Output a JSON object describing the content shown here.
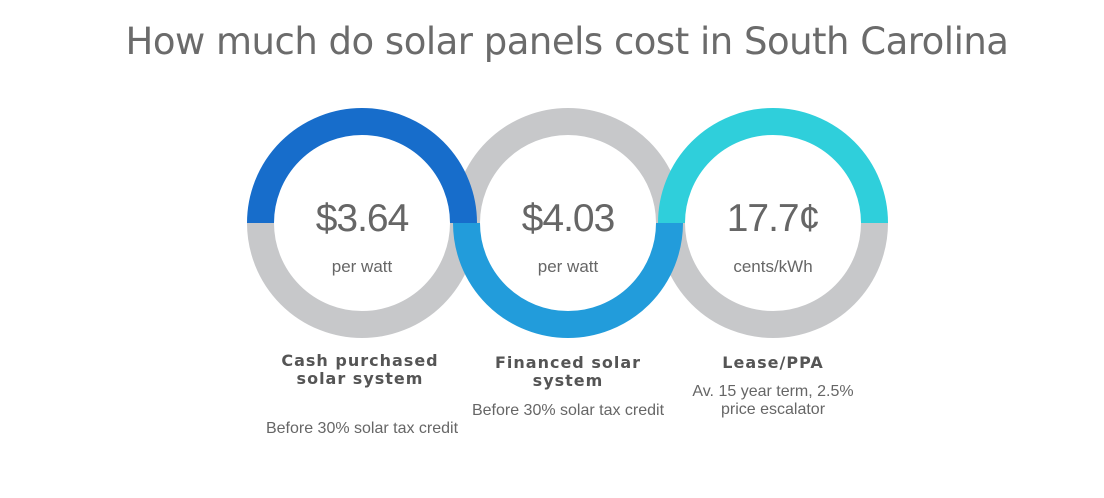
{
  "title": "How much do solar panels cost in South Carolina",
  "colors": {
    "gray": "#c7c8ca",
    "dark_blue": "#176dcb",
    "blue": "#229cdb",
    "cyan": "#2fcfdb",
    "text": "#666666"
  },
  "cards": [
    {
      "value": "$3.64",
      "unit": "per watt",
      "heading": "Cash purchased solar system",
      "note": "Before 30% solar tax credit"
    },
    {
      "value": "$4.03",
      "unit": "per watt",
      "heading": "Financed solar system",
      "note": "Before 30% solar tax credit"
    },
    {
      "value": "17.7¢",
      "unit": "cents/kWh",
      "heading": "Lease/PPA",
      "note": "Av. 15 year term, 2.5% price escalator"
    }
  ]
}
